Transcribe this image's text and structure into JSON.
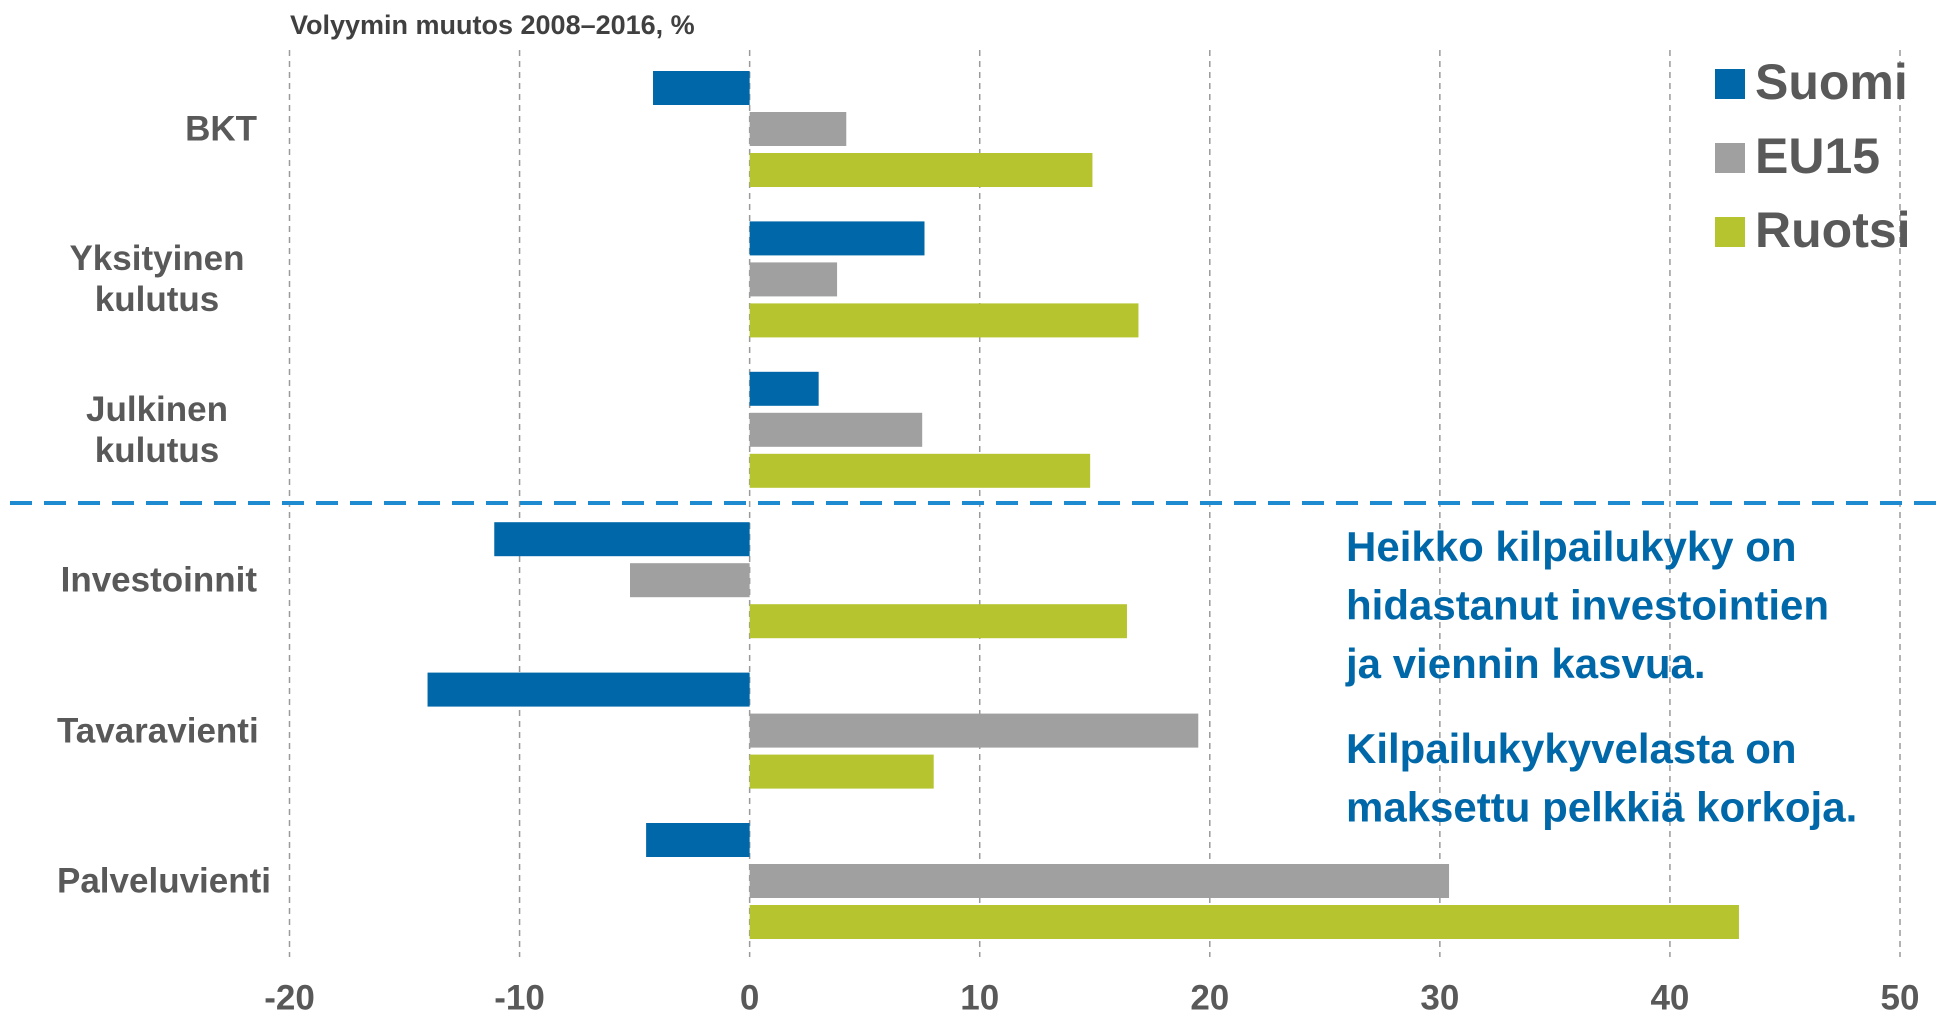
{
  "chart_data": {
    "type": "hbar",
    "title": "Volyymin muutos 2008–2016, %",
    "categories": [
      "BKT",
      "Yksityinen kulutus",
      "Julkinen kulutus",
      "Investoinnit",
      "Tavaravienti",
      "Palveluvienti"
    ],
    "series": [
      {
        "name": "Suomi",
        "color": "#0068a8",
        "values": [
          -4.2,
          7.6,
          3.0,
          -11.1,
          -14.0,
          -4.5
        ]
      },
      {
        "name": "EU15",
        "color": "#a0a0a0",
        "values": [
          4.2,
          3.8,
          7.5,
          -5.2,
          19.5,
          30.4
        ]
      },
      {
        "name": "Ruotsi",
        "color": "#b5c42f",
        "values": [
          14.9,
          16.9,
          14.8,
          16.4,
          8.0,
          43.0
        ]
      }
    ],
    "xlim": [
      -20,
      50
    ],
    "xticks": [
      -20,
      -10,
      0,
      10,
      20,
      30,
      40,
      50
    ],
    "grid": true,
    "legend": "top-right",
    "annotations": [
      [
        "Heikko kilpailukyky on",
        "hidastanut investointien",
        "ja viennin kasvua."
      ],
      [
        "Kilpailukykyvelasta on",
        "maksettu pelkkiä korkoja."
      ]
    ]
  }
}
